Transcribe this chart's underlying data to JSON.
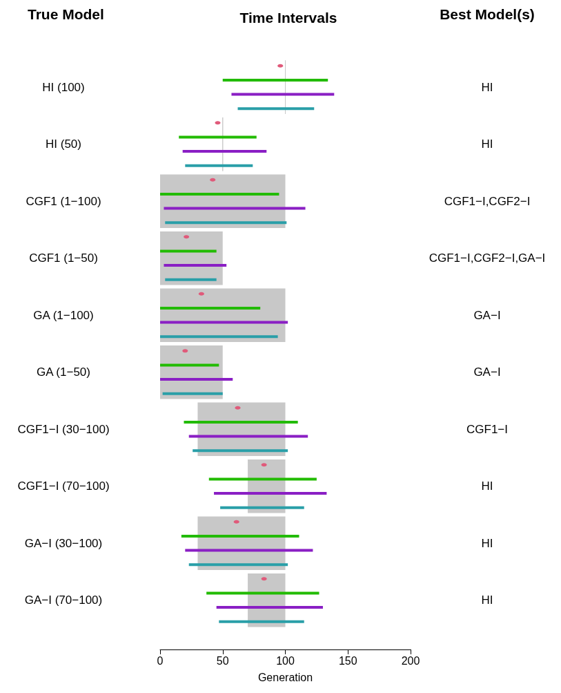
{
  "chart_data": {
    "type": "bar",
    "orientation": "horizontal",
    "title": "Time Intervals",
    "ylabel": "True Model",
    "xlabel": "Generation",
    "categories": [
      "HI (100)",
      "HI (50)",
      "CGF1 (1−100)",
      "CGF1 (1−50)",
      "GA (1−100)",
      "GA (1−50)",
      "CGF1−I (30−100)",
      "CGF1−I (70−100)",
      "GA−I (30−100)",
      "GA−I (70−100)"
    ],
    "xlim": [
      0,
      200
    ],
    "xticks": [
      0,
      50,
      100,
      150,
      200
    ],
    "grid": false,
    "series": [
      {
        "color": "#c8c8c8",
        "base": [
          100,
          50,
          0,
          0,
          0,
          0,
          30,
          70,
          30,
          70
        ],
        "values": [
          0,
          0,
          100,
          50,
          100,
          50,
          70,
          30,
          70,
          30
        ]
      },
      {
        "color": "#22bb00",
        "base": [
          50,
          15,
          0,
          0,
          0,
          0,
          19,
          39,
          17,
          37
        ],
        "values": [
          84,
          62,
          95,
          45,
          80,
          47,
          91,
          86,
          94,
          90
        ]
      },
      {
        "color": "#8a1fc4",
        "base": [
          57,
          18,
          3,
          3,
          0,
          0,
          23,
          43,
          20,
          45
        ],
        "values": [
          82,
          67,
          113,
          50,
          102,
          58,
          95,
          90,
          102,
          85
        ]
      },
      {
        "color": "#2a9fa8",
        "base": [
          62,
          20,
          4,
          4,
          0,
          2,
          26,
          48,
          23,
          47
        ],
        "values": [
          61,
          54,
          97,
          41,
          94,
          48,
          76,
          67,
          79,
          68
        ]
      },
      {
        "type": "scatter",
        "color": "#e05a7a",
        "values": [
          96,
          46,
          42,
          21,
          33,
          20,
          62,
          83,
          61,
          83
        ]
      }
    ],
    "annotations": [
      "Best Model(s)",
      "HI",
      "HI",
      "CGF1−I,CGF2−I",
      "CGF1−I,CGF2−I,GA−I",
      "GA−I",
      "GA−I",
      "CGF1−I",
      "HI",
      "HI",
      "HI"
    ]
  }
}
